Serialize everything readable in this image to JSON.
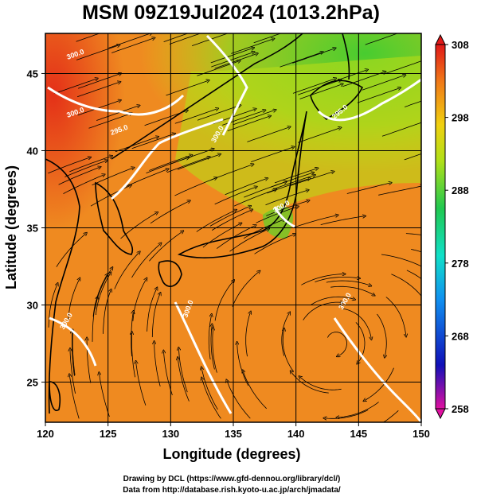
{
  "title": "MSM 09Z19Jul2024 (1013.2hPa)",
  "x_axis": {
    "label": "Longitude (degrees)",
    "range": [
      120,
      150
    ],
    "ticks": [
      "120",
      "125",
      "130",
      "135",
      "140",
      "145",
      "150"
    ]
  },
  "y_axis": {
    "label": "Latitude  (degrees)",
    "range": [
      22.4,
      47.6
    ],
    "ticks": [
      "25",
      "30",
      "35",
      "40",
      "45"
    ]
  },
  "colorbar": {
    "range": [
      258,
      308
    ],
    "ticks": [
      "308",
      "298",
      "288",
      "278",
      "268",
      "258"
    ],
    "colors": [
      "#e0109a",
      "#1010c8",
      "#1080f0",
      "#10e0d0",
      "#18d060",
      "#70d818",
      "#e8e810",
      "#f0a018",
      "#f05018",
      "#e01818"
    ]
  },
  "contour_labels": [
    "300.0",
    "300.0",
    "295.0",
    "295.0",
    "300.0",
    "300.0",
    "300.0",
    "300.0",
    "300.0"
  ],
  "credits": {
    "line1": "Drawing by DCL (https://www.gfd-dennou.org/library/dcl/)",
    "line2": "Data from http://database.rish.kyoto-u.ac.jp/arch/jmadata/"
  }
}
